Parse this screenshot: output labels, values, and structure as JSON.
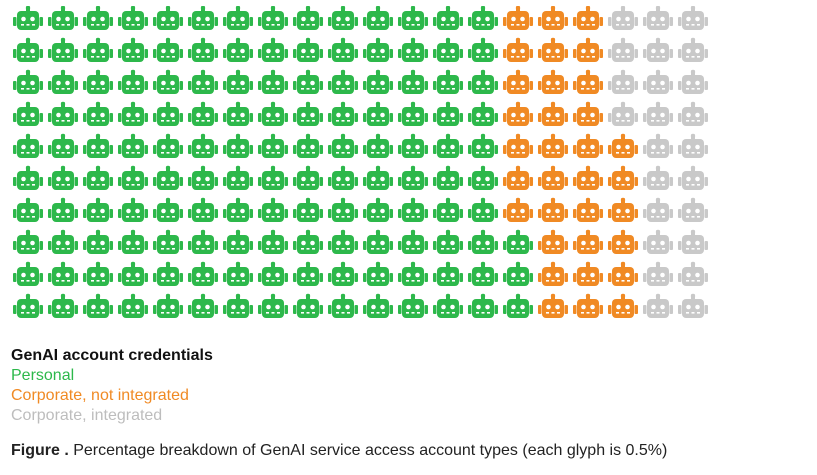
{
  "chart_data": {
    "type": "waffle",
    "rows": 10,
    "columns": 20,
    "glyph": "robot-icon",
    "glyph_unit_percent": 0.5,
    "series": [
      {
        "name": "Personal",
        "color": "#2db84b",
        "row_counts": [
          14,
          14,
          14,
          14,
          14,
          14,
          14,
          15,
          15,
          15
        ]
      },
      {
        "name": "Corporate, not integrated",
        "color": "#f08a24",
        "row_counts": [
          3,
          3,
          3,
          3,
          4,
          4,
          4,
          3,
          3,
          3
        ]
      },
      {
        "name": "Corporate, integrated",
        "color": "#c9c9c9",
        "row_counts": [
          3,
          3,
          3,
          3,
          2,
          2,
          2,
          2,
          2,
          2
        ]
      }
    ],
    "legend_title": "GenAI account credentials"
  },
  "caption": {
    "label": "Figure .",
    "text": "Percentage breakdown of GenAI service access account types (each glyph is 0.5%)"
  }
}
